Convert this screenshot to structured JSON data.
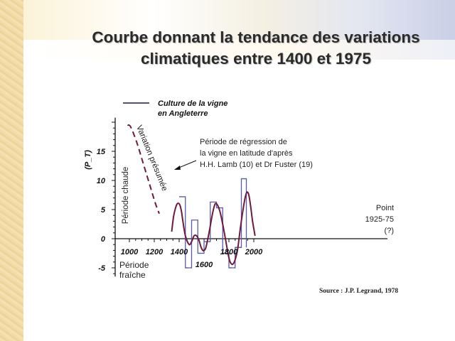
{
  "slide": {
    "title_line1": "Courbe donnant la tendance des variations",
    "title_line2": "climatiques entre 1400 et 1975",
    "source": "Source : J.P. Legrand, 1978"
  },
  "colors": {
    "curve": "#6e1a3e",
    "steps": "#5a5aa6",
    "axis": "#111111"
  },
  "chart_data": {
    "type": "line",
    "xlim": [
      960,
      2030
    ],
    "ylim": [
      -6.5,
      22
    ],
    "x_ticks": [
      1000,
      1200,
      1400,
      1600,
      1800,
      2000
    ],
    "y_ticks": [
      -5,
      0,
      5,
      10,
      15
    ],
    "y_label": "(P_T)",
    "label_warm": "Période chaude",
    "label_cold": "Période fraîche",
    "legend_line": "Culture de la vigne",
    "legend_line2": "en Angleterre",
    "annotation_presumed": "Variation présumée",
    "annotation_regression": [
      "Période de régression de",
      "la vigne en latitude d'après",
      "H.H. Lamb (10) et Dr Fuster (19)"
    ],
    "annotation_point": [
      "Point",
      "1925-75",
      "(?)"
    ],
    "series": [
      {
        "style": "dashed",
        "x": [
          985,
          1010,
          1060,
          1110,
          1160,
          1210,
          1240
        ],
        "y": [
          19.5,
          19.2,
          16.5,
          13,
          9.5,
          6,
          4.3
        ]
      },
      {
        "style": "solid-wave",
        "x": [
          1340,
          1355,
          1370,
          1385,
          1400,
          1410,
          1420,
          1430,
          1450,
          1480,
          1500,
          1520,
          1540,
          1560,
          1575,
          1590,
          1600,
          1615,
          1640,
          1670,
          1690,
          1710,
          1730,
          1750,
          1765,
          1780,
          1795,
          1810,
          1830,
          1850,
          1870,
          1890,
          1910,
          1930,
          1945,
          1960,
          1975,
          1990,
          2010
        ],
        "y": [
          1.2,
          3.8,
          5.2,
          6,
          6,
          5.5,
          4.5,
          3,
          0.5,
          -1,
          -0.5,
          0.5,
          0.5,
          -0.3,
          -1.4,
          -2,
          -2,
          -1.5,
          1,
          4.5,
          6,
          5.7,
          4.5,
          2.5,
          0.8,
          -1,
          -2.8,
          -4,
          -4.4,
          -3.6,
          -1.8,
          1.5,
          4.5,
          7,
          8,
          7.5,
          5.5,
          3,
          0.5
        ]
      }
    ],
    "steps": [
      {
        "x0": 1400,
        "x1": 1450,
        "y": 7.2
      },
      {
        "x0": 1450,
        "x1": 1500,
        "y": -5
      },
      {
        "x0": 1500,
        "x1": 1550,
        "y": 3.2
      },
      {
        "x0": 1550,
        "x1": 1600,
        "y": -2.5
      },
      {
        "x0": 1600,
        "x1": 1650,
        "y": -0.5
      },
      {
        "x0": 1650,
        "x1": 1700,
        "y": 6.3
      },
      {
        "x0": 1700,
        "x1": 1750,
        "y": 5.3
      },
      {
        "x0": 1750,
        "x1": 1800,
        "y": -2.5
      },
      {
        "x0": 1800,
        "x1": 1850,
        "y": -5
      },
      {
        "x0": 1850,
        "x1": 1900,
        "y": -1.5
      },
      {
        "x0": 1900,
        "x1": 1940,
        "y": 10.3
      }
    ]
  }
}
